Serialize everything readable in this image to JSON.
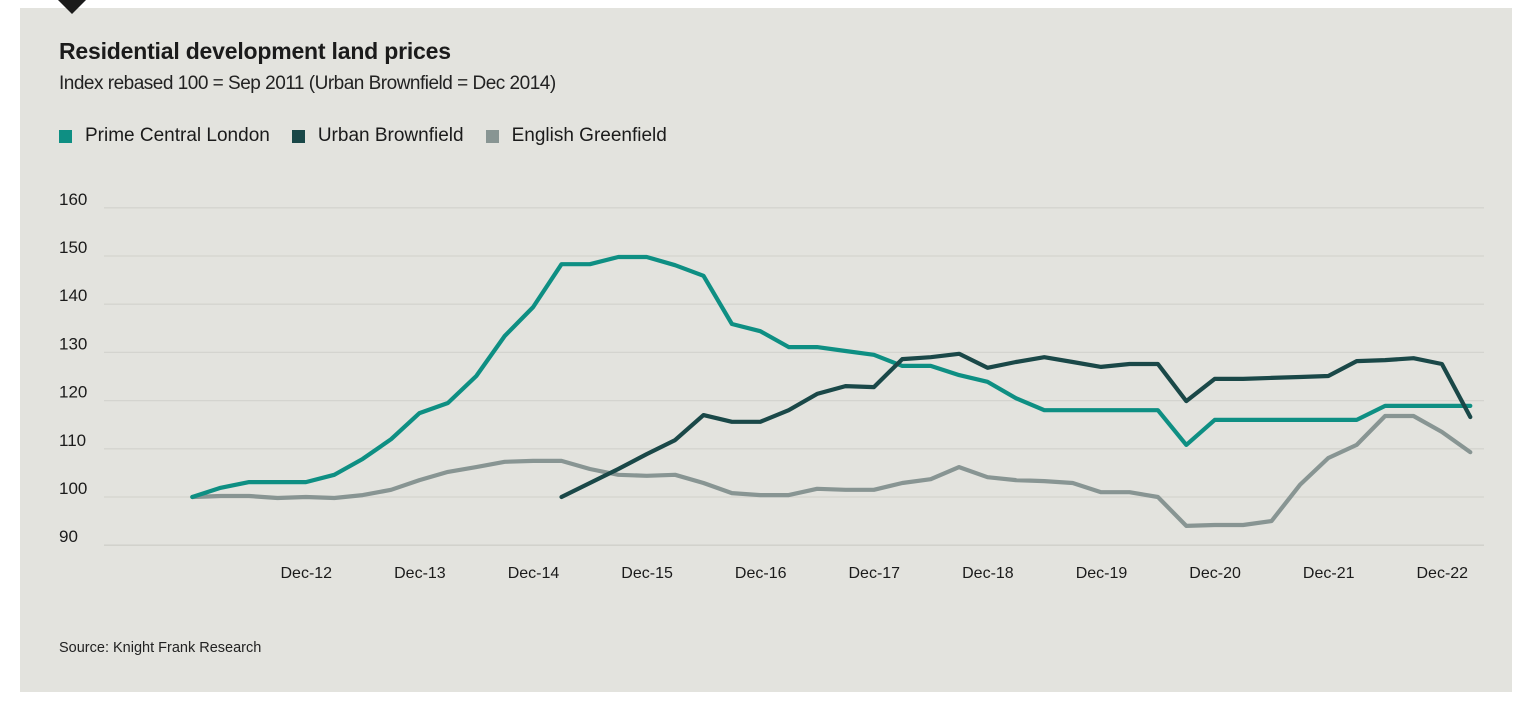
{
  "header": {
    "title": "Residential development land prices",
    "subtitle": "Index rebased 100 = Sep 2011 (Urban Brownfield = Dec 2014)"
  },
  "legend": [
    {
      "label": "Prime Central London",
      "color": "#0e8f83"
    },
    {
      "label": "Urban Brownfield",
      "color": "#1a4848"
    },
    {
      "label": "English Greenfield",
      "color": "#889593"
    }
  ],
  "footer": {
    "source": "Source: Knight Frank Research"
  },
  "chart_data": {
    "type": "line",
    "title": "Residential development land prices",
    "subtitle": "Index rebased 100 = Sep 2011 (Urban Brownfield = Dec 2014)",
    "xlabel": "",
    "ylabel": "",
    "frequency": "quarterly",
    "x_start": "Sep 2011",
    "x_end": "Dec 2022",
    "x_count": 46,
    "x_ticks": [
      {
        "label": "Dec-12",
        "index": 5
      },
      {
        "label": "Dec-13",
        "index": 9
      },
      {
        "label": "Dec-14",
        "index": 13
      },
      {
        "label": "Dec-15",
        "index": 17
      },
      {
        "label": "Dec-16",
        "index": 21
      },
      {
        "label": "Dec-17",
        "index": 25
      },
      {
        "label": "Dec-18",
        "index": 29
      },
      {
        "label": "Dec-19",
        "index": 33
      },
      {
        "label": "Dec-20",
        "index": 37
      },
      {
        "label": "Dec-21",
        "index": 41
      },
      {
        "label": "Dec-22",
        "index": 45
      }
    ],
    "y_ticks": [
      90,
      100,
      110,
      120,
      130,
      140,
      150,
      160
    ],
    "ylim": [
      90,
      160
    ],
    "grid": true,
    "legend_position": "top-left",
    "series": [
      {
        "name": "Prime Central London",
        "color": "#0e8f83",
        "start_index": 0,
        "values": [
          100,
          101.9,
          103.1,
          103.1,
          103.1,
          104.6,
          107.9,
          112,
          117.4,
          119.5,
          125.1,
          133.4,
          139.4,
          148.3,
          148.3,
          149.8,
          149.8,
          148.1,
          145.9,
          135.9,
          134.4,
          131.1,
          131.1,
          130.3,
          129.5,
          127.2,
          127.2,
          125.3,
          123.9,
          120.5,
          118,
          118,
          118,
          118,
          118,
          110.8,
          116,
          116,
          116,
          116,
          116,
          116,
          118.9,
          118.9,
          118.9,
          118.9
        ]
      },
      {
        "name": "Urban Brownfield",
        "color": "#1a4848",
        "start_index": 13,
        "values": [
          100,
          102.9,
          105.8,
          108.9,
          111.8,
          117,
          115.6,
          115.6,
          118,
          121.4,
          123,
          122.8,
          128.6,
          129,
          129.7,
          126.8,
          128,
          129,
          128,
          127,
          127.6,
          127.6,
          119.9,
          124.5,
          124.5,
          124.7,
          124.9,
          125.1,
          128.2,
          128.4,
          128.8,
          127.6,
          116.6
        ]
      },
      {
        "name": "English Greenfield",
        "color": "#889593",
        "start_index": 0,
        "values": [
          100,
          100.2,
          100.2,
          99.8,
          100,
          99.8,
          100.4,
          101.5,
          103.5,
          105.2,
          106.2,
          107.3,
          107.5,
          107.5,
          105.8,
          104.6,
          104.4,
          104.6,
          102.9,
          100.8,
          100.4,
          100.4,
          101.7,
          101.5,
          101.5,
          102.9,
          103.7,
          106.2,
          104.1,
          103.5,
          103.3,
          102.9,
          101,
          101,
          100,
          94,
          94.2,
          94.2,
          95,
          102.5,
          108.1,
          110.8,
          116.8,
          116.8,
          113.5,
          109.3
        ]
      }
    ]
  }
}
